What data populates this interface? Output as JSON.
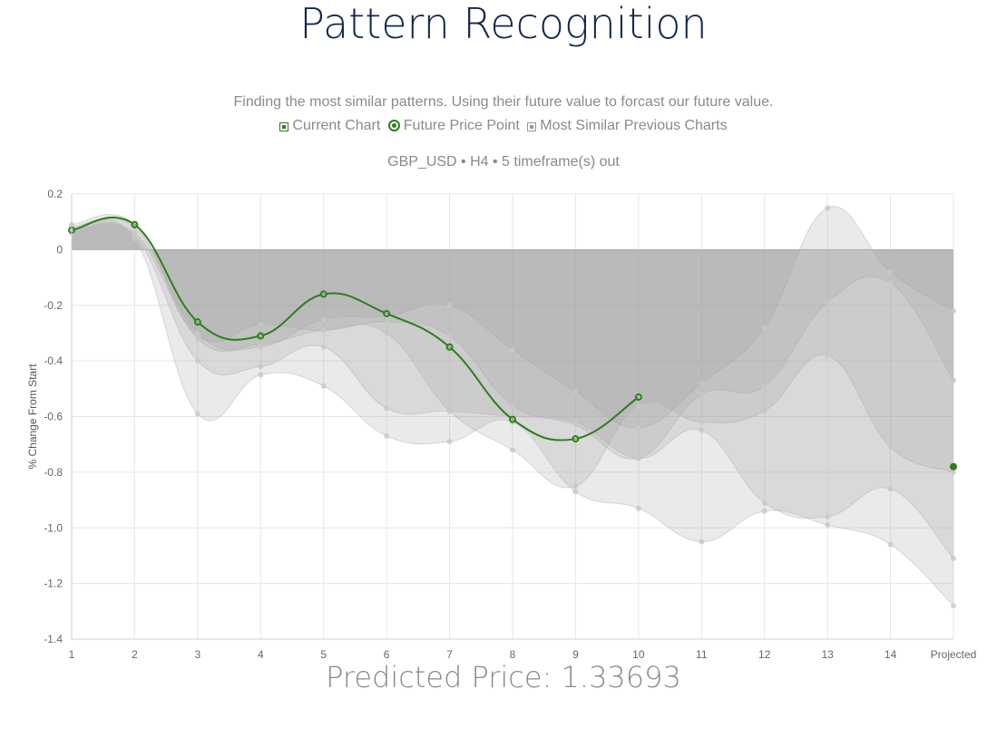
{
  "header": {
    "title": "Pattern Recognition",
    "description": "Finding the most similar patterns. Using their future value to forcast our future value."
  },
  "legend": {
    "items": [
      {
        "label": "Current Chart",
        "shape": "square",
        "color": "#2e7d1e"
      },
      {
        "label": "Future Price Point",
        "shape": "circle",
        "color": "#2e7d1e"
      },
      {
        "label": "Most Similar Previous Charts",
        "shape": "square",
        "color": "#9a9a9a"
      }
    ]
  },
  "subtitle": "GBP_USD • H4 • 5 timeframe(s) out",
  "prediction": {
    "label": "Predicted Price: 1.33693"
  },
  "chart_data": {
    "type": "area",
    "categories": [
      "1",
      "2",
      "3",
      "4",
      "5",
      "6",
      "7",
      "8",
      "9",
      "10",
      "11",
      "12",
      "13",
      "14",
      "Projected"
    ],
    "ylabel": "% Change From Start",
    "ylim": [
      -1.4,
      0.2
    ],
    "yticks": [
      "0.2",
      "0",
      "-0.2",
      "-0.4",
      "-0.6",
      "-0.8",
      "-1.0",
      "-1.2",
      "-1.4"
    ],
    "grid": true,
    "current": {
      "color": "#2e7d1e",
      "values": [
        0.07,
        0.09,
        -0.26,
        -0.31,
        -0.16,
        -0.23,
        -0.35,
        -0.61,
        -0.68,
        -0.53
      ]
    },
    "future_point": {
      "category": "Projected",
      "value": -0.78,
      "color": "#2e7d1e"
    },
    "similar_series": [
      {
        "values": [
          0.08,
          0.08,
          -0.3,
          -0.35,
          -0.25,
          -0.24,
          -0.2,
          -0.36,
          -0.51,
          -0.64,
          -0.48,
          -0.28,
          0.15,
          -0.08,
          -0.22
        ],
        "fill": "rgba(160,160,160,0.22)"
      },
      {
        "values": [
          0.06,
          0.06,
          -0.31,
          -0.27,
          -0.29,
          -0.26,
          -0.31,
          -0.56,
          -0.63,
          -0.75,
          -0.52,
          -0.49,
          -0.19,
          -0.12,
          -0.47
        ],
        "fill": "rgba(160,160,160,0.22)"
      },
      {
        "values": [
          0.09,
          0.09,
          -0.32,
          -0.34,
          -0.29,
          -0.3,
          -0.58,
          -0.72,
          -0.85,
          -0.56,
          -0.62,
          -0.58,
          -0.38,
          -0.71,
          -0.8
        ],
        "fill": "rgba(160,160,160,0.22)"
      },
      {
        "values": [
          0.07,
          0.05,
          -0.4,
          -0.42,
          -0.35,
          -0.57,
          -0.58,
          -0.6,
          -0.62,
          -0.75,
          -0.65,
          -0.91,
          -0.96,
          -0.86,
          -1.11
        ],
        "fill": "rgba(160,160,160,0.22)"
      },
      {
        "values": [
          0.08,
          0.04,
          -0.59,
          -0.45,
          -0.49,
          -0.67,
          -0.69,
          -0.62,
          -0.87,
          -0.93,
          -1.05,
          -0.94,
          -0.99,
          -1.06,
          -1.28
        ],
        "fill": "rgba(160,160,160,0.22)"
      }
    ]
  }
}
